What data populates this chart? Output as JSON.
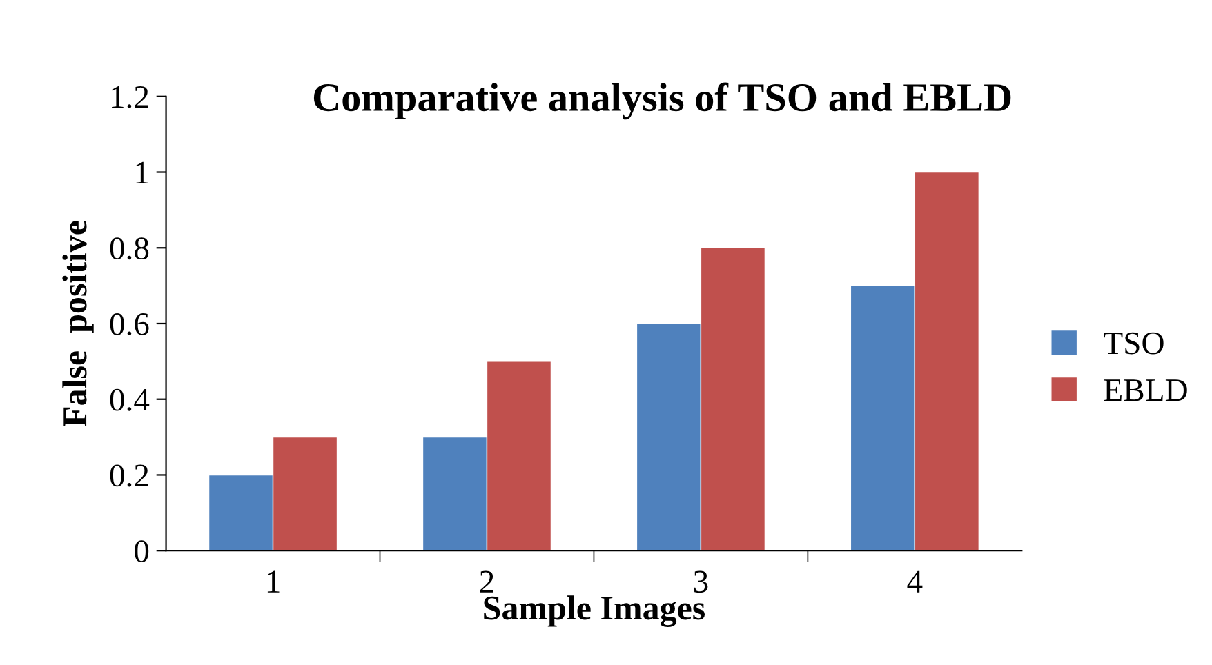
{
  "chart_data": {
    "type": "bar",
    "title": "Comparative analysis of TSO and EBLD",
    "xlabel": "Sample Images",
    "ylabel": "False  positive",
    "categories": [
      "1",
      "2",
      "3",
      "4"
    ],
    "series": [
      {
        "name": "TSO",
        "color": "#4f81bd",
        "values": [
          0.2,
          0.3,
          0.6,
          0.7
        ]
      },
      {
        "name": "EBLD",
        "color": "#c0504d",
        "values": [
          0.3,
          0.5,
          0.8,
          1.0
        ]
      }
    ],
    "ylim": [
      0,
      1.2
    ],
    "yticks": [
      {
        "value": 0,
        "label": "0"
      },
      0.2,
      0.4,
      0.6,
      0.8,
      {
        "value": 1,
        "label": "1"
      },
      1.2
    ],
    "grid": false,
    "legend": "right"
  }
}
